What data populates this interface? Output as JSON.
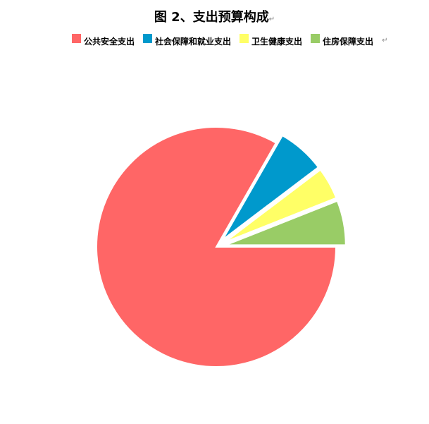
{
  "chart_data": {
    "type": "pie",
    "title": "图 2、支出预算构成",
    "legend_position": "top",
    "slices": [
      {
        "label": "公共安全支出",
        "value": 83.3,
        "color": "#FF6666",
        "exploded": false
      },
      {
        "label": "社会保障和就业支出",
        "value": 6.4,
        "color": "#0099CC",
        "exploded": true
      },
      {
        "label": "卫生健康支出",
        "value": 4.3,
        "color": "#FFFF66",
        "exploded": true
      },
      {
        "label": "住房保障支出",
        "value": 6.0,
        "color": "#99CC66",
        "exploded": true
      }
    ]
  },
  "marks": {
    "return": "↵"
  }
}
